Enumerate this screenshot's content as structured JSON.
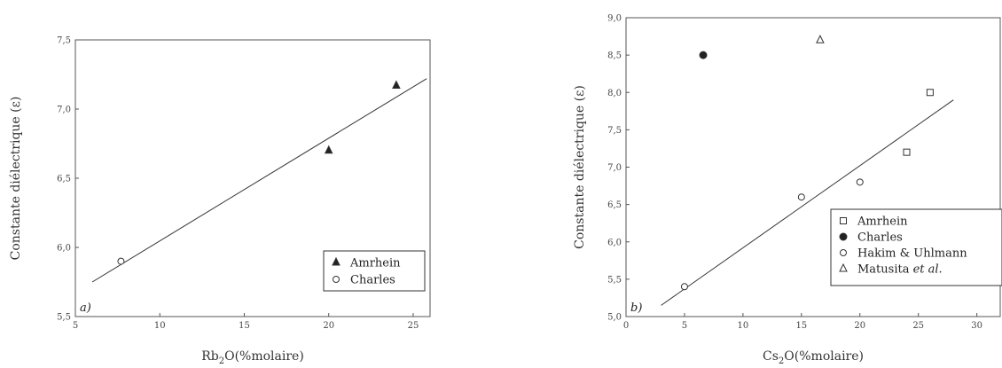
{
  "chart_data": [
    {
      "type": "scatter",
      "panel_label": "a)",
      "xlabel": "Rb",
      "xlabel_sub": "2",
      "xlabel_rest": "O(%molaire)",
      "ylabel": "Constante diélectrique (ε)",
      "xlim": [
        5,
        26
      ],
      "ylim": [
        5.5,
        7.5
      ],
      "xticks": [
        5,
        10,
        15,
        20,
        25
      ],
      "yticks": [
        5.5,
        6.0,
        6.5,
        7.0,
        7.5
      ],
      "xtick_labels": [
        "5",
        "10",
        "15",
        "20",
        "25"
      ],
      "ytick_labels": [
        "5,5",
        "6,0",
        "6,5",
        "7,0",
        "7,5"
      ],
      "series": [
        {
          "name": "Amrhein",
          "marker": "filled-triangle",
          "points": [
            [
              20,
              6.7
            ],
            [
              24,
              7.17
            ]
          ]
        },
        {
          "name": "Charles",
          "marker": "open-circle",
          "points": [
            [
              7.7,
              5.9
            ]
          ]
        }
      ],
      "fit_line": [
        [
          6,
          5.75
        ],
        [
          25.8,
          7.22
        ]
      ],
      "legend_position": "bottom-right"
    },
    {
      "type": "scatter",
      "panel_label": "b)",
      "xlabel": "Cs",
      "xlabel_sub": "2",
      "xlabel_rest": "O(%molaire)",
      "ylabel": "Constante diélectrique (ε)",
      "xlim": [
        0,
        32
      ],
      "ylim": [
        5.0,
        9.0
      ],
      "xticks": [
        0,
        5,
        10,
        15,
        20,
        25,
        30
      ],
      "yticks": [
        5.0,
        5.5,
        6.0,
        6.5,
        7.0,
        7.5,
        8.0,
        8.5,
        9.0
      ],
      "xtick_labels": [
        "0",
        "5",
        "10",
        "15",
        "20",
        "25",
        "30"
      ],
      "ytick_labels": [
        "5,0",
        "5,5",
        "6,0",
        "6,5",
        "7,0",
        "7,5",
        "8,0",
        "8,5",
        "9,0"
      ],
      "series": [
        {
          "name": "Amrhein",
          "marker": "open-square",
          "points": [
            [
              24,
              7.2
            ],
            [
              26,
              8.0
            ]
          ]
        },
        {
          "name": "Charles",
          "marker": "filled-circle",
          "points": [
            [
              6.6,
              8.5
            ]
          ]
        },
        {
          "name": "Hakim & Uhlmann",
          "marker": "open-circle",
          "points": [
            [
              5,
              5.4
            ],
            [
              15,
              6.6
            ],
            [
              20,
              6.8
            ]
          ]
        },
        {
          "name": "Matusita",
          "name_suffix": " et al.",
          "marker": "open-triangle",
          "points": [
            [
              16.6,
              8.7
            ]
          ]
        }
      ],
      "fit_line": [
        [
          3,
          5.15
        ],
        [
          28,
          7.9
        ]
      ],
      "legend_position": "bottom-right"
    }
  ]
}
